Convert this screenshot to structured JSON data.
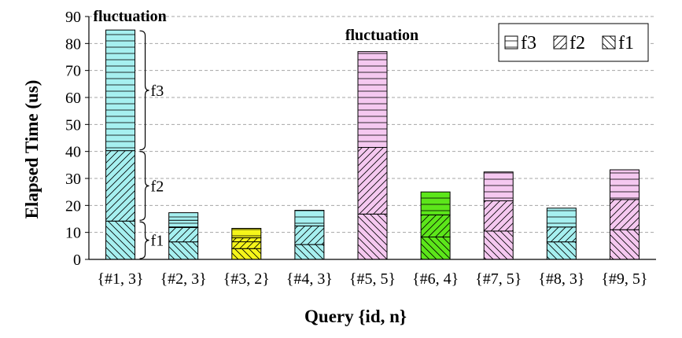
{
  "chart_data": {
    "type": "bar",
    "stacked": true,
    "ylabel": "Elapsed Time (us)",
    "xlabel": "Query {id, n}",
    "ylim": [
      0,
      90
    ],
    "yticks": [
      0,
      10,
      20,
      30,
      40,
      50,
      60,
      70,
      80,
      90
    ],
    "grid": true,
    "legend_position": "top-right",
    "categories": [
      "{#1, 3}",
      "{#2, 3}",
      "{#3, 2}",
      "{#4, 3}",
      "{#5, 5}",
      "{#6, 4}",
      "{#7, 5}",
      "{#8, 3}",
      "{#9, 5}"
    ],
    "bar_colors": [
      "#a6f0f0",
      "#a6f0f0",
      "#f5f51a",
      "#a6f0f0",
      "#f5c8f0",
      "#5ce61a",
      "#f5c8f0",
      "#a6f0f0",
      "#f5c8f0"
    ],
    "series": [
      {
        "name": "f1",
        "pattern": "backslash",
        "values": [
          14.2,
          6.5,
          4.0,
          5.5,
          16.8,
          8.3,
          10.5,
          6.5,
          11.0
        ]
      },
      {
        "name": "f2",
        "pattern": "slash",
        "values": [
          26.1,
          5.3,
          4.0,
          6.9,
          24.7,
          8.2,
          11.2,
          5.5,
          11.2
        ]
      },
      {
        "name": "f3",
        "pattern": "horizontal",
        "values": [
          44.7,
          5.5,
          3.5,
          5.8,
          35.5,
          8.5,
          10.7,
          7.0,
          11.0
        ]
      }
    ],
    "segment_dividers": [
      [],
      [
        12.0,
        14.5
      ],
      [
        6.5,
        8.0
      ],
      [],
      [],
      [],
      [],
      [],
      []
    ],
    "legend": [
      {
        "name": "f3",
        "pattern": "horizontal"
      },
      {
        "name": "f2",
        "pattern": "slash"
      },
      {
        "name": "f1",
        "pattern": "backslash"
      }
    ],
    "annotations": [
      {
        "text": "fluctuation",
        "category_index": 0,
        "y": 88
      },
      {
        "text": "fluctuation",
        "category_index": 4,
        "y": 81
      }
    ],
    "braces": [
      {
        "text": "f1",
        "category_index": 0,
        "from": 0,
        "to": 14.2
      },
      {
        "text": "f2",
        "category_index": 0,
        "from": 14.2,
        "to": 40.3
      },
      {
        "text": "f3",
        "category_index": 0,
        "from": 40.3,
        "to": 85
      }
    ]
  }
}
